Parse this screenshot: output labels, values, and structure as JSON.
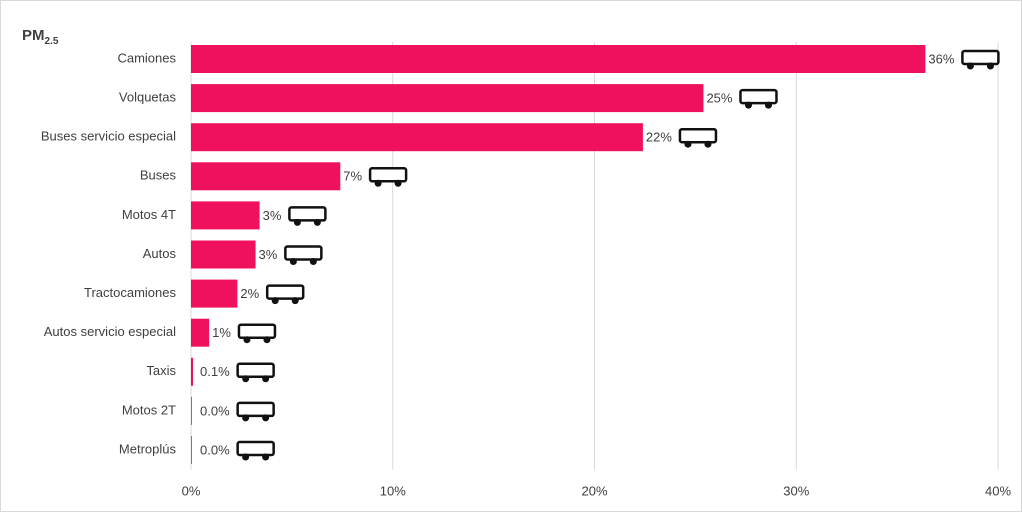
{
  "chart_data": {
    "type": "bar",
    "orientation": "horizontal",
    "title": {
      "text": "PM",
      "subscript": "2.5"
    },
    "categories": [
      "Camiones",
      "Volquetas",
      "Buses servicio especial",
      "Buses",
      "Motos 4T",
      "Autos",
      "Tractocamiones",
      "Autos servicio especial",
      "Taxis",
      "Motos 2T",
      "Metroplús"
    ],
    "values": [
      36.4,
      25.4,
      22.4,
      7.4,
      3.4,
      3.2,
      2.3,
      0.9,
      0.1,
      0.04,
      0.04
    ],
    "value_labels": [
      "36%",
      "25%",
      "22%",
      "7%",
      "3%",
      "3%",
      "2%",
      "1%",
      "0.1%",
      "0.0%",
      "0.0%"
    ],
    "color": "#f0115e",
    "xlim": [
      0,
      40
    ],
    "xticks": [
      {
        "value": 0,
        "label": "0%"
      },
      {
        "value": 10,
        "label": "10%"
      },
      {
        "value": 20,
        "label": "20%"
      },
      {
        "value": 30,
        "label": "30%"
      },
      {
        "value": 40,
        "label": "40%"
      }
    ],
    "grid": true
  }
}
